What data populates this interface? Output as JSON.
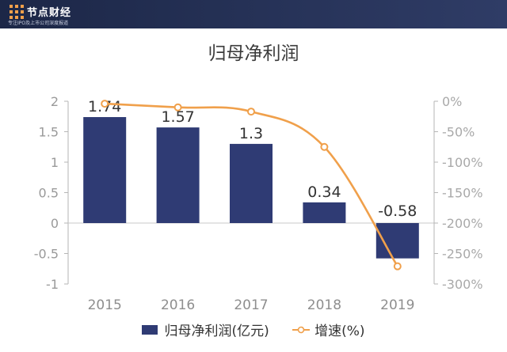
{
  "header": {
    "brand_name": "节点财经",
    "tagline": "专注IPO及上市公司深度报道",
    "bg_color": "#243159",
    "logo_icon": "grid-dots-icon"
  },
  "chart_data": {
    "type": "bar",
    "title": "归母净利润",
    "categories": [
      "2015",
      "2016",
      "2017",
      "2018",
      "2019"
    ],
    "series": [
      {
        "name": "归母净利润(亿元)",
        "type": "bar",
        "axis": "left",
        "values": [
          1.74,
          1.57,
          1.3,
          0.34,
          -0.58
        ],
        "color": "#2f3b74"
      },
      {
        "name": "增速(%)",
        "type": "line",
        "axis": "right",
        "values": [
          -4,
          -10,
          -17,
          -75,
          -271
        ],
        "color": "#f0a04b"
      }
    ],
    "data_labels": [
      "1.74",
      "1.57",
      "1.3",
      "0.34",
      "-0.58"
    ],
    "left_axis": {
      "ylim": [
        -1,
        2
      ],
      "ticks": [
        2,
        1.5,
        1,
        0.5,
        0,
        -0.5,
        -1
      ],
      "tick_labels": [
        "2",
        "1.5",
        "1",
        "0.5",
        "0",
        "-0.5",
        "-1"
      ]
    },
    "right_axis": {
      "ylim": [
        -300,
        0
      ],
      "ticks": [
        0,
        -50,
        -100,
        -150,
        -200,
        -250,
        -300
      ],
      "tick_labels": [
        "0%",
        "-50%",
        "-100%",
        "-150%",
        "-200%",
        "-250%",
        "-300%"
      ]
    },
    "legend_position": "bottom",
    "grid": false
  }
}
